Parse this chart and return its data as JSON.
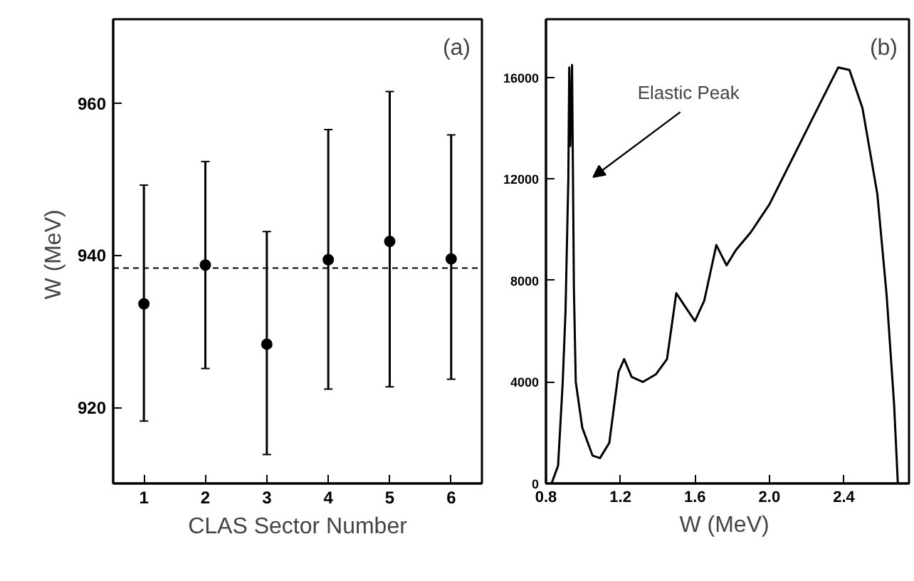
{
  "chart_data": [
    {
      "type": "scatter",
      "xlabel": "CLAS Sector Number",
      "ylabel": "W  (MeV)",
      "annotations": [
        "(a)"
      ],
      "x": [
        1,
        2,
        3,
        4,
        5,
        6
      ],
      "xlim": [
        0.5,
        6.5
      ],
      "xticks": [
        1,
        2,
        3,
        4,
        5,
        6
      ],
      "ylim": [
        910,
        971
      ],
      "yticks": [
        920,
        940,
        960
      ],
      "series": [
        {
          "color": "#000000",
          "values": [
            933.6,
            938.7,
            928.3,
            939.4,
            941.8,
            939.5
          ],
          "errors": [
            [
              918.2,
              949.2
            ],
            [
              925.1,
              952.3
            ],
            [
              913.8,
              943.1
            ],
            [
              922.4,
              956.5
            ],
            [
              922.7,
              961.5
            ],
            [
              923.7,
              955.8
            ]
          ]
        }
      ],
      "marker": "circle",
      "grid": false,
      "ref_lines": [
        {
          "axis": "y",
          "value": 938.3,
          "color": "#000000",
          "line_style": "dashed"
        }
      ]
    },
    {
      "type": "line",
      "xlabel": "W  (MeV)",
      "annotations": [
        "(b)",
        "Elastic Peak"
      ],
      "xlim": [
        0.8,
        2.75
      ],
      "xticks": [
        0.8,
        1.2,
        1.6,
        {
          "value": 2.0,
          "label": "2.0"
        },
        2.4
      ],
      "ylim": [
        0,
        18300
      ],
      "yticks": [
        0,
        4000,
        8000,
        12000,
        16000
      ],
      "series": [
        {
          "color": "#000000",
          "x": [
            0.83,
            0.865,
            0.89,
            0.905,
            0.92,
            0.925,
            0.93,
            0.94,
            0.95,
            0.96,
            0.995,
            1.05,
            1.09,
            1.14,
            1.19,
            1.22,
            1.26,
            1.32,
            1.39,
            1.45,
            1.5,
            1.545,
            1.6,
            1.65,
            1.715,
            1.77,
            1.82,
            1.9,
            2.0,
            2.13,
            2.26,
            2.37,
            2.43,
            2.5,
            2.58,
            2.63,
            2.67,
            2.69
          ],
          "values": [
            0,
            700,
            4000,
            6800,
            12000,
            16400,
            13300,
            16500,
            7700,
            4000,
            2200,
            1100,
            1000,
            1600,
            4400,
            4900,
            4200,
            4000,
            4300,
            4900,
            7500,
            7000,
            6400,
            7200,
            9400,
            8600,
            9200,
            9900,
            11000,
            12900,
            14800,
            16400,
            16300,
            14800,
            11400,
            7400,
            3100,
            0
          ]
        }
      ],
      "marker": "none",
      "line_style": "solid",
      "grid": false
    }
  ]
}
